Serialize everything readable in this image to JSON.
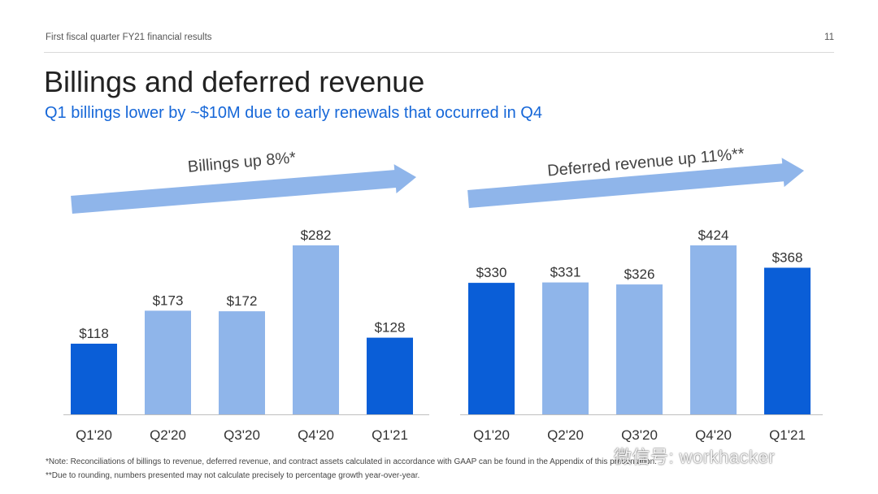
{
  "header": {
    "text": "First fiscal quarter FY21 financial results",
    "page_number": "11"
  },
  "title": "Billings and deferred revenue",
  "subtitle": "Q1 billings lower by ~$10M due to early renewals that occurred in Q4",
  "colors": {
    "dark_bar": "#0a5ed7",
    "light_bar": "#8fb5ea",
    "arrow": "#8fb5ea",
    "axis": "#bfbfbf",
    "label": "#333333"
  },
  "chart_data": [
    {
      "type": "bar",
      "title": "Billings up 8%*",
      "categories": [
        "Q1'20",
        "Q2'20",
        "Q3'20",
        "Q4'20",
        "Q1'21"
      ],
      "values": [
        118,
        173,
        172,
        282,
        128
      ],
      "data_labels": [
        "$118",
        "$173",
        "$172",
        "$282",
        "$128"
      ],
      "highlight": [
        true,
        false,
        false,
        false,
        true
      ],
      "xlabel": "",
      "ylabel": "",
      "ylim": [
        0,
        282
      ],
      "grid": false
    },
    {
      "type": "bar",
      "title": "Deferred revenue up 11%**",
      "categories": [
        "Q1'20",
        "Q2'20",
        "Q3'20",
        "Q4'20",
        "Q1'21"
      ],
      "values": [
        330,
        331,
        326,
        424,
        368
      ],
      "data_labels": [
        "$330",
        "$331",
        "$326",
        "$424",
        "$368"
      ],
      "highlight": [
        true,
        false,
        false,
        false,
        true
      ],
      "xlabel": "",
      "ylabel": "",
      "ylim": [
        0,
        424
      ],
      "grid": false
    }
  ],
  "footnotes": [
    "*Note: Reconciliations of billings to revenue, deferred revenue, and contract assets calculated in accordance with GAAP can be found in the Appendix of this presentation.",
    "**Due to rounding, numbers presented may not calculate precisely to percentage growth year-over-year."
  ],
  "watermark": "微信号: workhacker"
}
